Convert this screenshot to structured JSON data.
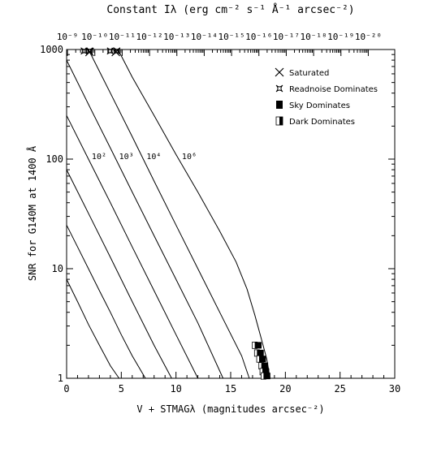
{
  "chart_data": {
    "type": "line",
    "title": "Constant Iλ (erg cm⁻² s⁻¹ Å⁻¹ arcsec⁻²)",
    "xlabel": "V + STMAGλ (magnitudes arcsec⁻²)",
    "ylabel": "SNR for G140M at 1400 Å",
    "xlim": [
      0,
      30
    ],
    "ylim": [
      1,
      1000
    ],
    "y_scale": "log",
    "x_ticks": [
      "0",
      "5",
      "10",
      "15",
      "20",
      "25",
      "30"
    ],
    "y_ticks": [
      "1",
      "10",
      "100",
      "1000"
    ],
    "top_ticks": [
      "10⁻⁹",
      "10⁻¹⁰",
      "10⁻¹¹",
      "10⁻¹²",
      "10⁻¹³",
      "10⁻¹⁴",
      "10⁻¹⁵",
      "10⁻¹⁶",
      "10⁻¹⁷",
      "10⁻¹⁸",
      "10⁻¹⁹",
      "10⁻²⁰"
    ],
    "curve_labels": [
      "10²",
      "10³",
      "10⁴",
      "10⁶"
    ],
    "legend": [
      "Saturated",
      "Readnoise Dominates",
      "Sky Dominates",
      "Dark Dominates"
    ],
    "legend_position": "top-right",
    "grid": false,
    "series": [
      {
        "x": [
          0,
          1,
          2,
          3,
          4,
          4.8
        ],
        "y": [
          8,
          5,
          3.1,
          2.0,
          1.3,
          1
        ]
      },
      {
        "x": [
          0,
          1,
          2,
          3,
          4,
          5,
          6,
          7.2
        ],
        "y": [
          25,
          15.8,
          10,
          6.3,
          4.0,
          2.5,
          1.6,
          1
        ]
      },
      {
        "x": [
          0,
          2,
          4,
          6,
          8,
          9.6
        ],
        "y": [
          80,
          32,
          12.7,
          5.0,
          2.0,
          1
        ]
      },
      {
        "x": [
          0,
          2,
          4,
          6,
          8,
          10,
          12
        ],
        "y": [
          250,
          100,
          40,
          15.8,
          6.3,
          2.5,
          1
        ]
      },
      {
        "x": [
          0,
          2,
          4,
          6,
          8,
          10,
          12,
          14.3
        ],
        "y": [
          800,
          316,
          126,
          50,
          20,
          8,
          3.2,
          1
        ]
      },
      {
        "x": [
          2,
          4,
          6,
          8,
          10,
          12,
          14,
          16,
          16.7
        ],
        "y": [
          1000,
          400,
          160,
          63,
          25,
          10,
          4,
          1.6,
          1
        ]
      },
      {
        "x": [
          4.7,
          6,
          8,
          10,
          12,
          14,
          15.5,
          16.5,
          17.2,
          17.8,
          18.3,
          18.6
        ],
        "y": [
          1000,
          560,
          250,
          110,
          50,
          22,
          11.5,
          6.5,
          3.8,
          2.3,
          1.5,
          1
        ]
      }
    ],
    "saturated_points": [
      {
        "x": 2.1,
        "y": 950
      },
      {
        "x": 4.5,
        "y": 950
      }
    ],
    "readnoise_points": [
      {
        "x": 1.6,
        "y": 970
      },
      {
        "x": 2.1,
        "y": 970
      },
      {
        "x": 4.0,
        "y": 970
      },
      {
        "x": 4.6,
        "y": 970
      }
    ],
    "sky_points": [
      {
        "x": 17.6,
        "y": 2.0
      },
      {
        "x": 17.8,
        "y": 1.7
      },
      {
        "x": 18.0,
        "y": 1.5
      },
      {
        "x": 18.2,
        "y": 1.3
      },
      {
        "x": 18.3,
        "y": 1.15
      },
      {
        "x": 18.4,
        "y": 1.05
      }
    ],
    "dark_points": [
      {
        "x": 17.2,
        "y": 2.0
      },
      {
        "x": 17.4,
        "y": 1.7
      },
      {
        "x": 17.6,
        "y": 1.5
      },
      {
        "x": 17.8,
        "y": 1.3
      },
      {
        "x": 17.9,
        "y": 1.15
      },
      {
        "x": 18.0,
        "y": 1.05
      }
    ]
  }
}
